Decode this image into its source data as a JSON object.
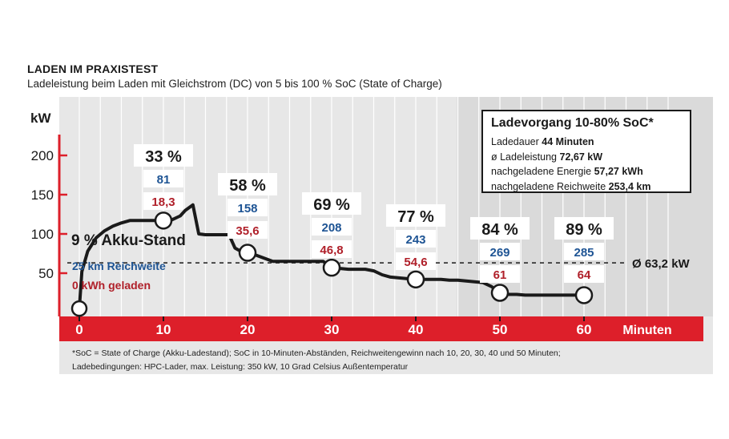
{
  "header": {
    "title": "LADEN IM PRAXISTEST",
    "subtitle": "Ladeleistung beim Laden mit Gleichstrom (DC) von 5 bis 100 % SoC (State of Charge)"
  },
  "chart_data": {
    "type": "line",
    "ylabel": "kW",
    "xlabel": "Minuten",
    "xlim": [
      0,
      60
    ],
    "ylim": [
      0,
      200
    ],
    "x_ticks": [
      0,
      10,
      20,
      30,
      40,
      50,
      60
    ],
    "y_ticks": [
      50,
      100,
      150,
      200
    ],
    "grid": "vertical",
    "series": [
      {
        "x": [
          0,
          0.3,
          1,
          2,
          3,
          4,
          5,
          6,
          7,
          8,
          9,
          10,
          11,
          12,
          12.6,
          13.5,
          14.2,
          15,
          16,
          17,
          17.8,
          18.5,
          19.5,
          20,
          21,
          22,
          23,
          24,
          25,
          26,
          27,
          28,
          29,
          30,
          31,
          32,
          33,
          34,
          35,
          36,
          37,
          38,
          39,
          40,
          41,
          42,
          43,
          44,
          45,
          46,
          47,
          48,
          49,
          50,
          51,
          52,
          53,
          54,
          55,
          56,
          57,
          58,
          59,
          60
        ],
        "y": [
          5,
          52,
          78,
          95,
          104,
          110,
          114,
          117,
          117,
          117,
          117,
          117,
          118,
          123,
          130,
          137,
          100,
          99,
          99,
          99,
          99,
          82,
          76,
          76,
          73,
          69,
          65,
          65,
          65,
          65,
          65,
          65,
          65,
          57,
          56,
          55,
          55,
          55,
          53,
          48,
          45,
          44,
          43,
          42,
          42,
          42,
          42,
          41,
          41,
          40,
          39,
          38,
          33,
          25,
          23,
          23,
          22,
          22,
          22,
          22,
          22,
          22,
          22,
          22
        ]
      }
    ],
    "reference_line": {
      "value": 63.2,
      "label": "Ø 63,2 kW"
    },
    "checkpoints": [
      {
        "x": 10,
        "y": 117,
        "soc": "33 %",
        "range": "81",
        "energy": "18,3"
      },
      {
        "x": 20,
        "y": 76,
        "soc": "58 %",
        "range": "158",
        "energy": "35,6"
      },
      {
        "x": 30,
        "y": 57,
        "soc": "69 %",
        "range": "208",
        "energy": "46,8"
      },
      {
        "x": 40,
        "y": 42,
        "soc": "77 %",
        "range": "243",
        "energy": "54,6"
      },
      {
        "x": 50,
        "y": 25,
        "soc": "84 %",
        "range": "269",
        "energy": "61"
      },
      {
        "x": 60,
        "y": 22,
        "soc": "89 %",
        "range": "285",
        "energy": "64"
      }
    ],
    "start_point": {
      "x": 0,
      "y": 5
    },
    "start_labels": {
      "soc": "9 % Akku-Stand",
      "range": "25 km Reichweite",
      "energy": "0 kWh geladen"
    }
  },
  "info_box": {
    "title": "Ladevorgang 10-80% SoC*",
    "rows": [
      {
        "label": "Ladedauer",
        "value": "44 Minuten"
      },
      {
        "label": "ø Ladeleistung",
        "value": "72,67 kW"
      },
      {
        "label": "nachgeladene Energie",
        "value": "57,27 kWh"
      },
      {
        "label": "nachgeladene Reichweite",
        "value": "253,4 km"
      }
    ]
  },
  "footnote": {
    "line1": "*SoC = State of Charge (Akku-Ladestand); SoC in 10-Minuten-Abständen, Reichweitengewinn nach 10, 20, 30, 40 und 50 Minuten;",
    "line2": "Ladebedingungen: HPC-Lader, max. Leistung: 350 kW, 10 Grad Celsius Außentemperatur"
  },
  "colors": {
    "axis_red": "#dd1f2a",
    "range_blue": "#1e5494",
    "energy_red": "#b0202a",
    "panel_gray": "#e7e7e7",
    "panel_dark_gray": "#dadada"
  }
}
